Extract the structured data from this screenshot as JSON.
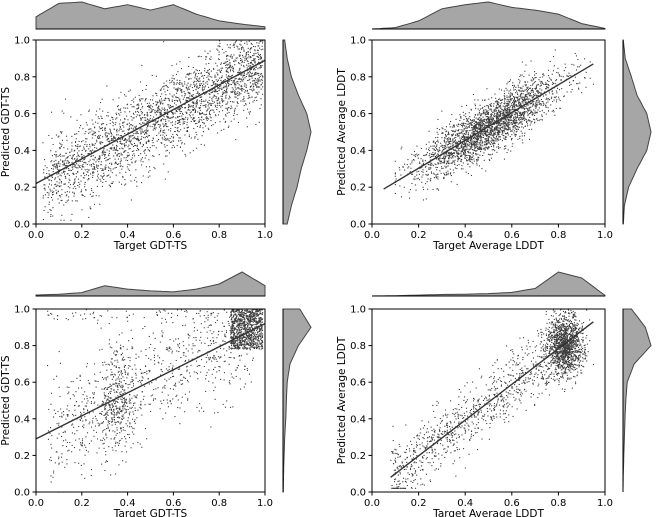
{
  "chart_data": [
    {
      "type": "scatter",
      "xlabel": "Target GDT-TS",
      "ylabel": "Predicted GDT-TS",
      "xlim": [
        0.0,
        1.0
      ],
      "ylim": [
        0.0,
        1.0
      ],
      "xticks": [
        "0.0",
        "0.2",
        "0.4",
        "0.6",
        "0.8",
        "1.0"
      ],
      "yticks": [
        "0.0",
        "0.2",
        "0.4",
        "0.6",
        "0.8",
        "1.0"
      ],
      "regression_line": {
        "x": [
          0.0,
          1.0
        ],
        "y": [
          0.22,
          0.89
        ]
      },
      "point_cloud": {
        "x_range": [
          0.03,
          0.99
        ],
        "trend": "positive linear, wide spread",
        "approx_count": 9000
      },
      "x_marginal_density": {
        "x": [
          0.0,
          0.1,
          0.2,
          0.3,
          0.4,
          0.5,
          0.6,
          0.7,
          0.8,
          0.9,
          1.0
        ],
        "density": [
          0.45,
          0.95,
          1.0,
          0.75,
          0.9,
          0.7,
          0.9,
          0.55,
          0.3,
          0.18,
          0.08
        ]
      },
      "y_marginal_density": {
        "y": [
          0.0,
          0.1,
          0.2,
          0.3,
          0.4,
          0.5,
          0.6,
          0.7,
          0.8,
          0.9,
          1.0
        ],
        "density": [
          0.15,
          0.3,
          0.5,
          0.65,
          0.85,
          1.0,
          0.85,
          0.55,
          0.3,
          0.15,
          0.06
        ]
      },
      "grid": false,
      "legend": "none"
    },
    {
      "type": "scatter",
      "xlabel": "Target Average LDDT",
      "ylabel": "Predicted Average LDDT",
      "xlim": [
        0.0,
        1.0
      ],
      "ylim": [
        0.0,
        1.0
      ],
      "xticks": [
        "0.0",
        "0.2",
        "0.4",
        "0.6",
        "0.8",
        "1.0"
      ],
      "yticks": [
        "0.0",
        "0.2",
        "0.4",
        "0.6",
        "0.8",
        "1.0"
      ],
      "regression_line": {
        "x": [
          0.05,
          0.95
        ],
        "y": [
          0.19,
          0.87
        ]
      },
      "point_cloud": {
        "x_range": [
          0.1,
          0.95
        ],
        "trend": "positive linear, tight spread",
        "approx_count": 9000
      },
      "x_marginal_density": {
        "x": [
          0.0,
          0.1,
          0.2,
          0.3,
          0.4,
          0.5,
          0.6,
          0.7,
          0.8,
          0.9,
          1.0
        ],
        "density": [
          0.0,
          0.05,
          0.3,
          0.75,
          0.9,
          1.0,
          0.8,
          0.7,
          0.55,
          0.2,
          0.02
        ]
      },
      "y_marginal_density": {
        "y": [
          0.0,
          0.1,
          0.2,
          0.3,
          0.4,
          0.5,
          0.6,
          0.7,
          0.8,
          0.9,
          1.0
        ],
        "density": [
          0.01,
          0.05,
          0.2,
          0.5,
          0.85,
          1.0,
          0.85,
          0.5,
          0.3,
          0.08,
          0.01
        ]
      },
      "grid": false,
      "legend": "none"
    },
    {
      "type": "scatter",
      "xlabel": "Target GDT-TS",
      "ylabel": "Predicted GDT-TS",
      "xlim": [
        0.0,
        1.0
      ],
      "ylim": [
        0.0,
        1.0
      ],
      "xticks": [
        "0.0",
        "0.2",
        "0.4",
        "0.6",
        "0.8",
        "1.0"
      ],
      "yticks": [
        "0.0",
        "0.2",
        "0.4",
        "0.6",
        "0.8",
        "1.0"
      ],
      "regression_line": {
        "x": [
          0.0,
          1.0
        ],
        "y": [
          0.29,
          0.92
        ]
      },
      "point_cloud": {
        "x_range": [
          0.05,
          0.99
        ],
        "trend": "positive linear, dense cluster near x 0.9-1.0, y 0.8-1.0",
        "approx_count": 7000
      },
      "x_marginal_density": {
        "x": [
          0.0,
          0.1,
          0.2,
          0.3,
          0.4,
          0.5,
          0.6,
          0.7,
          0.8,
          0.9,
          1.0
        ],
        "density": [
          0.03,
          0.05,
          0.1,
          0.3,
          0.2,
          0.15,
          0.12,
          0.2,
          0.35,
          0.7,
          0.3
        ]
      },
      "y_marginal_density": {
        "y": [
          0.0,
          0.1,
          0.2,
          0.3,
          0.4,
          0.5,
          0.6,
          0.7,
          0.8,
          0.9,
          1.0
        ],
        "density": [
          0.01,
          0.02,
          0.04,
          0.06,
          0.1,
          0.12,
          0.15,
          0.25,
          0.55,
          1.0,
          0.6
        ]
      },
      "grid": false,
      "legend": "none"
    },
    {
      "type": "scatter",
      "xlabel": "Target Average LDDT",
      "ylabel": "Predicted Average LDDT",
      "xlim": [
        0.0,
        1.0
      ],
      "ylim": [
        0.0,
        1.0
      ],
      "xticks": [
        "0.0",
        "0.2",
        "0.4",
        "0.6",
        "0.8",
        "1.0"
      ],
      "yticks": [
        "0.0",
        "0.2",
        "0.4",
        "0.6",
        "0.8",
        "1.0"
      ],
      "regression_line": {
        "x": [
          0.08,
          0.95
        ],
        "y": [
          0.08,
          0.93
        ]
      },
      "point_cloud": {
        "x_range": [
          0.08,
          0.95
        ],
        "trend": "positive linear, dense cluster near x 0.8-0.9, y 0.7-0.95",
        "approx_count": 7000
      },
      "x_marginal_density": {
        "x": [
          0.0,
          0.1,
          0.2,
          0.3,
          0.4,
          0.5,
          0.6,
          0.7,
          0.8,
          0.9,
          1.0
        ],
        "density": [
          0.0,
          0.01,
          0.03,
          0.05,
          0.06,
          0.08,
          0.12,
          0.25,
          0.8,
          0.6,
          0.02
        ]
      },
      "y_marginal_density": {
        "y": [
          0.0,
          0.1,
          0.2,
          0.3,
          0.4,
          0.5,
          0.6,
          0.7,
          0.8,
          0.9,
          1.0
        ],
        "density": [
          0.0,
          0.01,
          0.03,
          0.05,
          0.07,
          0.1,
          0.15,
          0.4,
          1.0,
          0.8,
          0.3
        ]
      },
      "grid": false,
      "legend": "none"
    }
  ],
  "colors": {
    "points": "#3d3d3d",
    "regression_line": "#333333",
    "marginal_fill": "#a6a6a6",
    "marginal_line": "#444444",
    "axes": "#000000"
  }
}
